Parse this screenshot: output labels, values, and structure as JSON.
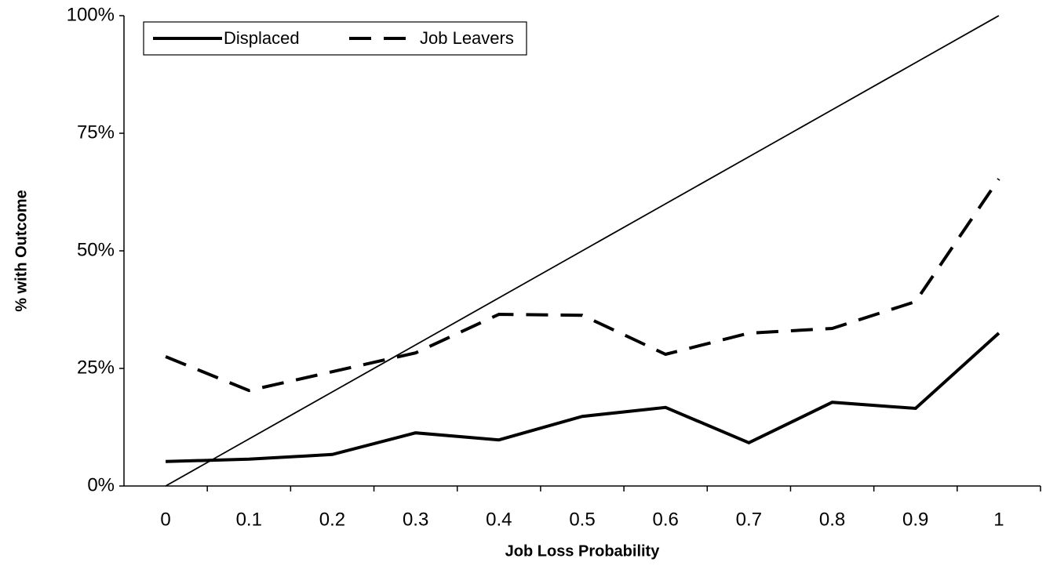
{
  "chart_data": {
    "type": "line",
    "x_label": "Job Loss Probability",
    "y_label": "% with Outcome",
    "categories": [
      "0",
      "0.1",
      "0.2",
      "0.3",
      "0.4",
      "0.5",
      "0.6",
      "0.7",
      "0.8",
      "0.9",
      "1"
    ],
    "series": [
      {
        "name": "Displaced",
        "color": "#000000",
        "dash": "solid",
        "values": [
          5.2,
          5.7,
          6.7,
          11.3,
          9.8,
          14.8,
          16.7,
          9.2,
          17.8,
          16.5,
          32.5
        ]
      },
      {
        "name": "Job Leavers",
        "color": "#000000",
        "dash": "dashed",
        "values": [
          27.5,
          20.3,
          24.3,
          28.3,
          36.5,
          36.3,
          28,
          32.5,
          33.5,
          39.2,
          65.3
        ]
      },
      {
        "color": "#000000",
        "dash": "thin",
        "values": [
          0,
          10,
          20,
          30,
          40,
          50,
          60,
          70,
          80,
          90,
          100
        ]
      }
    ],
    "ylim": [
      0,
      100
    ],
    "yticks": [
      {
        "value": 0,
        "label": "0%"
      },
      {
        "value": 25,
        "label": "25%"
      },
      {
        "value": 50,
        "label": "50%"
      },
      {
        "value": 75,
        "label": "75%"
      },
      {
        "value": 100,
        "label": "100%"
      }
    ],
    "grid": false,
    "legend_position": "top-left"
  }
}
